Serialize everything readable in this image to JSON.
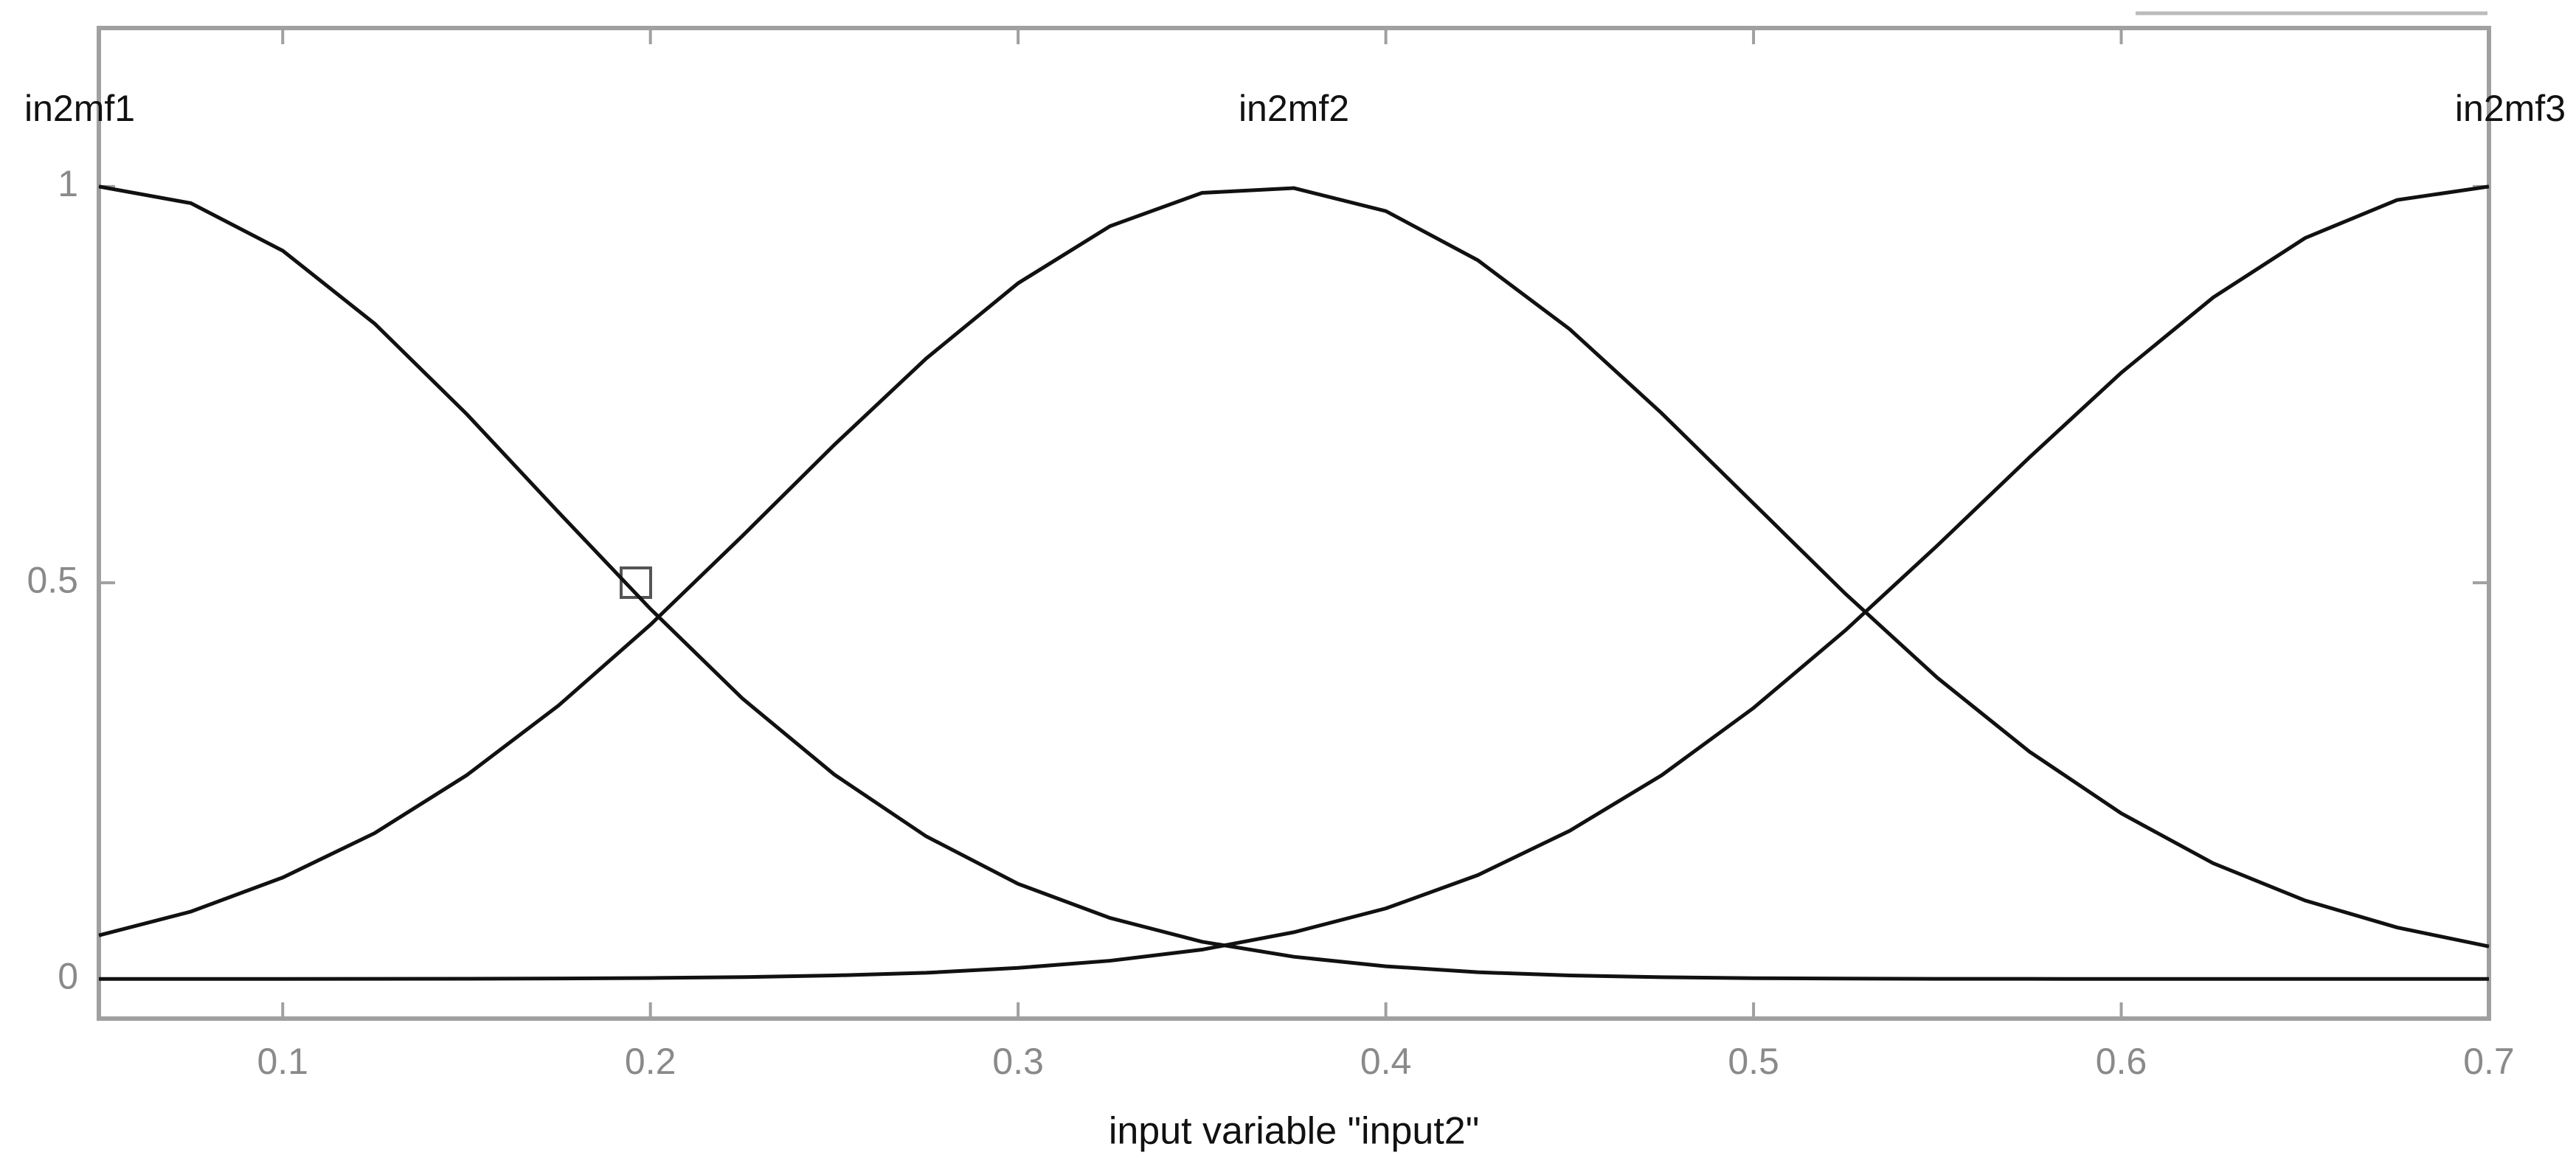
{
  "chart_data": {
    "type": "line",
    "xlabel": "input variable \"input2\"",
    "x": [
      0.05,
      0.075,
      0.1,
      0.125,
      0.15,
      0.175,
      0.2,
      0.225,
      0.25,
      0.275,
      0.3,
      0.325,
      0.35,
      0.375,
      0.4,
      0.425,
      0.45,
      0.475,
      0.5,
      0.525,
      0.55,
      0.575,
      0.6,
      0.625,
      0.65,
      0.675,
      0.7
    ],
    "series": [
      {
        "name": "in2mf1",
        "color": "#111111",
        "values": [
          1,
          0.979,
          0.919,
          0.827,
          0.713,
          0.589,
          0.467,
          0.354,
          0.258,
          0.18,
          0.12,
          0.077,
          0.047,
          0.028,
          0.016,
          0.0085,
          0.0044,
          0.0022,
          0.001,
          0.0005,
          0.0002,
          0.0001,
          0,
          0,
          0,
          0,
          0
        ]
      },
      {
        "name": "in2mf2",
        "color": "#111111",
        "values": [
          0.055,
          0.085,
          0.128,
          0.184,
          0.257,
          0.345,
          0.447,
          0.559,
          0.674,
          0.783,
          0.878,
          0.95,
          0.992,
          0.998,
          0.969,
          0.907,
          0.82,
          0.714,
          0.6,
          0.486,
          0.38,
          0.287,
          0.209,
          0.146,
          0.099,
          0.065,
          0.041
        ]
      },
      {
        "name": "in2mf3",
        "color": "#111111",
        "values": [
          0,
          0,
          0,
          0.0001,
          0.0003,
          0.0006,
          0.0012,
          0.0023,
          0.0044,
          0.0078,
          0.014,
          0.023,
          0.037,
          0.059,
          0.089,
          0.131,
          0.187,
          0.257,
          0.342,
          0.44,
          0.547,
          0.658,
          0.765,
          0.86,
          0.935,
          0.983,
          1
        ]
      }
    ],
    "xlim": [
      0.05,
      0.7
    ],
    "xticks": [
      0.1,
      0.2,
      0.3,
      0.4,
      0.5,
      0.6,
      0.7
    ],
    "ylim": [
      -0.05,
      1.2
    ],
    "yticks": [
      0,
      0.5,
      1
    ],
    "grid": false
  }
}
